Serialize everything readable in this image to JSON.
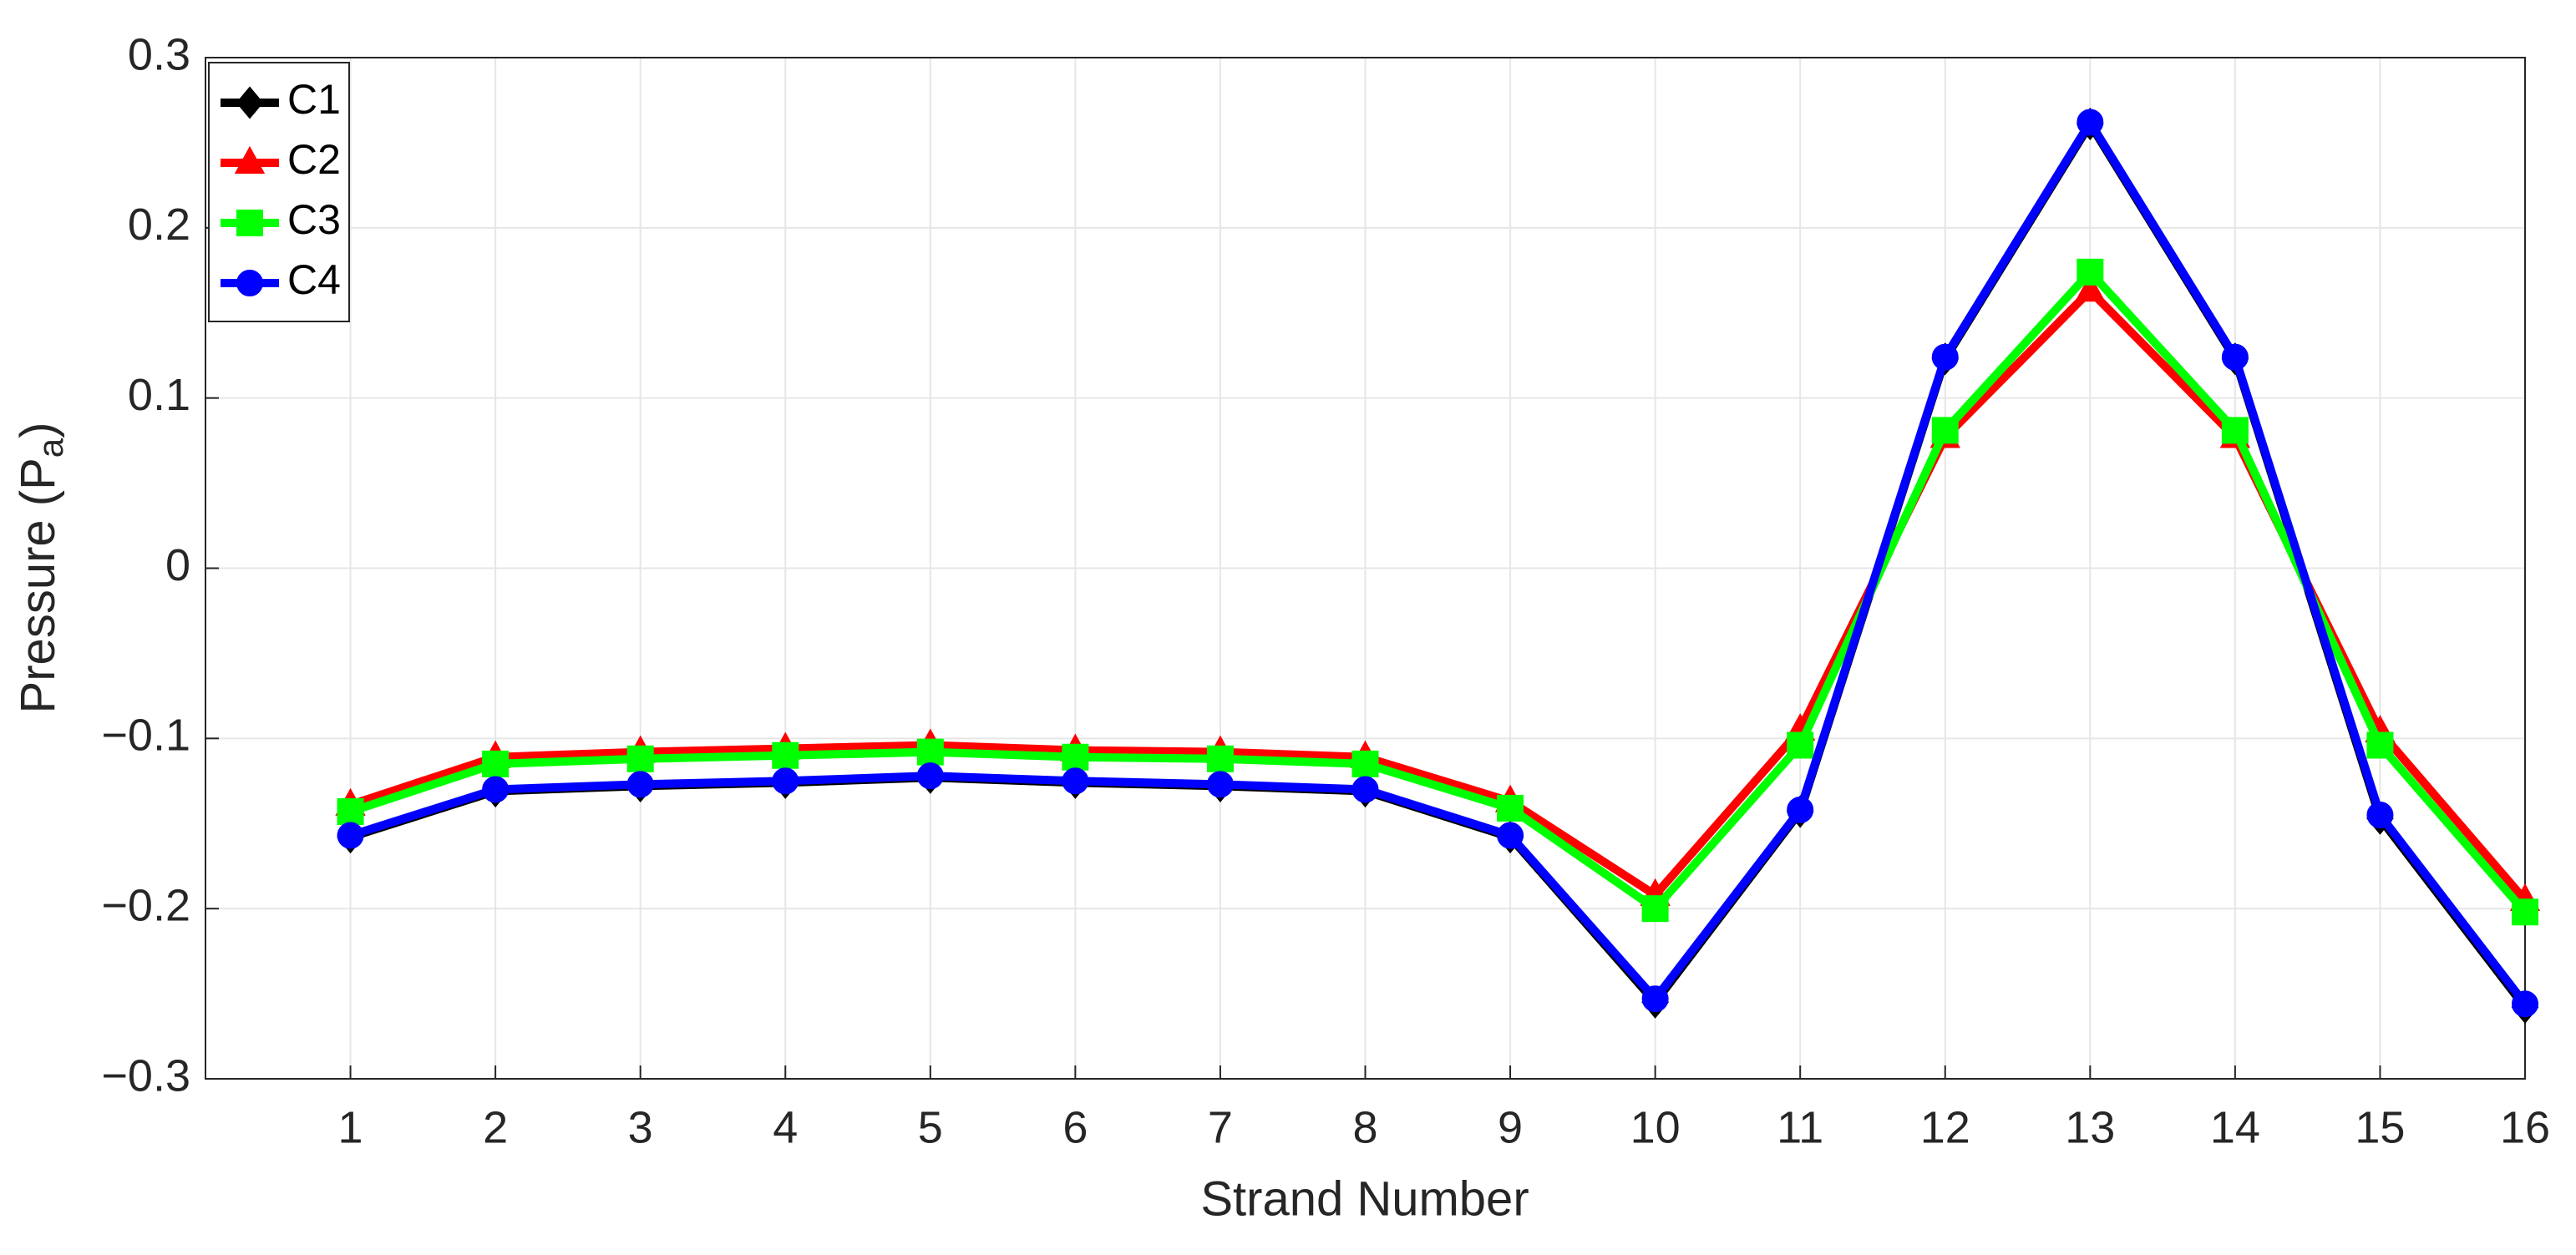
{
  "chart_data": {
    "type": "line",
    "xlabel": "Strand Number",
    "ylabel": "Pressure (P",
    "ylabel_sub": "a",
    "ylabel_end": ")",
    "x": [
      1,
      2,
      3,
      4,
      5,
      6,
      7,
      8,
      9,
      10,
      11,
      12,
      13,
      14,
      15,
      16
    ],
    "series": [
      {
        "name": "C1",
        "color": "#000000",
        "marker": "diamond",
        "values": [
          -0.158,
          -0.131,
          -0.128,
          -0.126,
          -0.123,
          -0.126,
          -0.128,
          -0.131,
          -0.158,
          -0.255,
          -0.143,
          0.123,
          0.261,
          0.123,
          -0.147,
          -0.258
        ]
      },
      {
        "name": "C2",
        "color": "#ff0000",
        "marker": "triangle",
        "values": [
          -0.139,
          -0.111,
          -0.108,
          -0.106,
          -0.104,
          -0.107,
          -0.108,
          -0.111,
          -0.137,
          -0.192,
          -0.095,
          0.077,
          0.163,
          0.077,
          -0.096,
          -0.195
        ]
      },
      {
        "name": "C3",
        "color": "#00ff00",
        "marker": "square",
        "values": [
          -0.143,
          -0.115,
          -0.112,
          -0.11,
          -0.108,
          -0.111,
          -0.112,
          -0.115,
          -0.141,
          -0.2,
          -0.104,
          0.081,
          0.174,
          0.081,
          -0.104,
          -0.202
        ]
      },
      {
        "name": "C4",
        "color": "#0000ff",
        "marker": "circle",
        "values": [
          -0.157,
          -0.13,
          -0.127,
          -0.125,
          -0.122,
          -0.125,
          -0.127,
          -0.13,
          -0.157,
          -0.253,
          -0.142,
          0.124,
          0.262,
          0.124,
          -0.145,
          -0.256
        ]
      }
    ],
    "xlim": [
      0,
      16
    ],
    "xticks": [
      1,
      2,
      3,
      4,
      5,
      6,
      7,
      8,
      9,
      10,
      11,
      12,
      13,
      14,
      15,
      16
    ],
    "ylim": [
      -0.3,
      0.3
    ],
    "yticks": [
      {
        "value": -0.3,
        "label": "−0.3"
      },
      {
        "value": -0.2,
        "label": "−0.2"
      },
      {
        "value": -0.1,
        "label": "−0.1"
      },
      0,
      0.1,
      0.2,
      0.3
    ],
    "grid": true,
    "legend": "upper-left"
  }
}
